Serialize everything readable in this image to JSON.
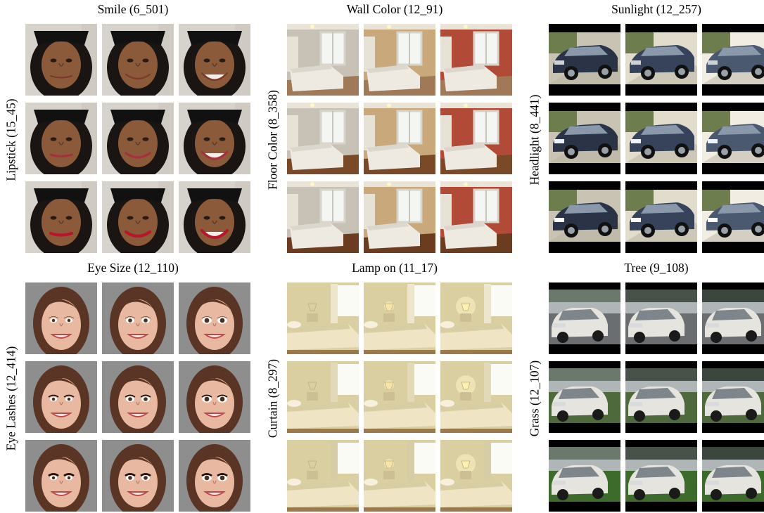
{
  "panels": [
    {
      "title": "Smile (6_501)",
      "row_label": "Lipstick (15_45)",
      "kind": "face_dark"
    },
    {
      "title": "Wall Color (12_91)",
      "row_label": "Floor Color (8_358)",
      "kind": "bedroom"
    },
    {
      "title": "Sunlight (12_257)",
      "row_label": "Headlight (8_441)",
      "kind": "car_dark"
    },
    {
      "title": "Eye Size (12_110)",
      "row_label": "Eye Lashes (12_414)",
      "kind": "face_light"
    },
    {
      "title": "Lamp on (11_17)",
      "row_label": "Curtain (8_297)",
      "kind": "bedroom2"
    },
    {
      "title": "Tree (9_108)",
      "row_label": "Grass (12_107)",
      "kind": "car_white"
    }
  ],
  "colors": {
    "skin_dark": "#8a5a3a",
    "hair_dark": "#1a1412",
    "skin_light": "#e8b9a0",
    "hair_brown": "#5a3424",
    "bg_gray": "#8e8e8e",
    "wall_gray": "#c8c2b6",
    "wall_beige": "#c9a97c",
    "wall_red": "#b24a38",
    "floor_brown": "#6b3c20",
    "room2_wall": "#d9cfa0",
    "car_navy": "#2a3446",
    "car_white": "#e6e4df",
    "grass_green": "#3d6b2b"
  }
}
